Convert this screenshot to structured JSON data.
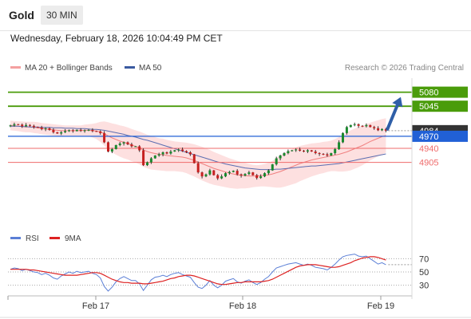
{
  "header": {
    "symbol": "Gold",
    "interval": "30 MIN",
    "datetime": "Wednesday, February 18, 2026 10:04:49 PM CET"
  },
  "legend": {
    "ma20_label": "MA 20 + Bollinger Bands",
    "ma50_label": "MA 50",
    "credit": "Research © 2026 Trading Central"
  },
  "colors": {
    "resistance": "#4a9c0a",
    "support": "#ef6b6b",
    "pivot": "#2160d6",
    "last": "#333333",
    "up_candle": "#1a8a2e",
    "down_candle": "#c62020",
    "bollinger_fill": "#fde0e0",
    "ma20": "#f08080",
    "ma50": "#5b6db0",
    "arrow": "#2f5fa8",
    "rsi": "#5b7fd6",
    "rsi_ma": "#dd2222"
  },
  "chart_data": [
    {
      "type": "candlestick",
      "x_ticks": [
        "Feb 17",
        "Feb 18",
        "Feb 19"
      ],
      "ylim": [
        4745,
        5115
      ],
      "levels": [
        {
          "value": 5080,
          "label": "5080",
          "kind": "resistance"
        },
        {
          "value": 5045,
          "label": "5045",
          "kind": "resistance"
        },
        {
          "value": 4984,
          "label": "4984",
          "kind": "last"
        },
        {
          "value": 4970,
          "label": "4970",
          "kind": "pivot"
        },
        {
          "value": 4940,
          "label": "4940",
          "kind": "support"
        },
        {
          "value": 4905,
          "label": "4905",
          "kind": "support"
        }
      ],
      "close": [
        4997,
        5000,
        4999,
        4995,
        4998,
        4996,
        4993,
        4992,
        4988,
        4990,
        4986,
        4980,
        4977,
        4980,
        4983,
        4985,
        4983,
        4986,
        4984,
        4985,
        4986,
        4983,
        4982,
        4978,
        4955,
        4932,
        4938,
        4948,
        4952,
        4955,
        4950,
        4945,
        4945,
        4935,
        4898,
        4905,
        4915,
        4922,
        4925,
        4930,
        4927,
        4932,
        4935,
        4937,
        4933,
        4930,
        4925,
        4903,
        4880,
        4870,
        4875,
        4885,
        4873,
        4865,
        4870,
        4878,
        4881,
        4884,
        4875,
        4872,
        4876,
        4880,
        4873,
        4866,
        4870,
        4878,
        4885,
        4900,
        4915,
        4922,
        4928,
        4933,
        4935,
        4937,
        4934,
        4932,
        4935,
        4932,
        4928,
        4926,
        4925,
        4922,
        4928,
        4938,
        4955,
        4978,
        4993,
        4998,
        5000,
        4996,
        4995,
        4998,
        4993,
        4990,
        4985,
        4988,
        4984
      ],
      "ma20": [
        4997,
        4996,
        4995,
        4994,
        4993,
        4993,
        4992,
        4991,
        4989,
        4988,
        4987,
        4986,
        4985,
        4984,
        4984,
        4984,
        4984,
        4984,
        4984,
        4985,
        4985,
        4984,
        4983,
        4981,
        4977,
        4971,
        4966,
        4962,
        4958,
        4955,
        4952,
        4948,
        4945,
        4941,
        4936,
        4932,
        4929,
        4927,
        4925,
        4924,
        4922,
        4921,
        4920,
        4919,
        4918,
        4916,
        4913,
        4910,
        4906,
        4902,
        4898,
        4894,
        4890,
        4887,
        4884,
        4881,
        4878,
        4876,
        4874,
        4873,
        4872,
        4871,
        4871,
        4871,
        4872,
        4873,
        4874,
        4876,
        4879,
        4882,
        4886,
        4890,
        4894,
        4898,
        4902,
        4905,
        4908,
        4911,
        4913,
        4915,
        4917,
        4919,
        4921,
        4923,
        4925,
        4928,
        4931,
        4935,
        4939,
        4943,
        4947,
        4952,
        4957,
        4961,
        4965,
        4969,
        4972
      ],
      "ma50": [
        4995,
        4995,
        4995,
        4994,
        4994,
        4993,
        4993,
        4993,
        4992,
        4992,
        4992,
        4991,
        4991,
        4991,
        4990,
        4990,
        4990,
        4989,
        4989,
        4989,
        4988,
        4987,
        4987,
        4986,
        4985,
        4983,
        4981,
        4979,
        4977,
        4975,
        4972,
        4970,
        4968,
        4965,
        4962,
        4960,
        4957,
        4954,
        4951,
        4948,
        4945,
        4942,
        4939,
        4936,
        4933,
        4930,
        4927,
        4924,
        4921,
        4918,
        4915,
        4912,
        4909,
        4906,
        4904,
        4901,
        4899,
        4897,
        4895,
        4893,
        4891,
        4890,
        4889,
        4888,
        4887,
        4887,
        4887,
        4887,
        4888,
        4888,
        4889,
        4890,
        4891,
        4892,
        4893,
        4894,
        4895,
        4896,
        4896,
        4897,
        4898,
        4899,
        4900,
        4901,
        4902,
        4904,
        4906,
        4908,
        4910,
        4912,
        4914,
        4916,
        4918,
        4920,
        4922,
        4924,
        4926
      ],
      "bb_width": [
        12,
        12,
        12,
        13,
        13,
        13,
        14,
        14,
        14,
        14,
        14,
        14,
        14,
        14,
        13,
        13,
        13,
        13,
        13,
        14,
        15,
        17,
        20,
        25,
        30,
        34,
        36,
        38,
        39,
        40,
        40,
        40,
        40,
        41,
        42,
        42,
        42,
        41,
        40,
        40,
        39,
        38,
        37,
        37,
        37,
        38,
        39,
        40,
        41,
        42,
        42,
        42,
        41,
        40,
        39,
        38,
        37,
        36,
        35,
        33,
        32,
        30,
        28,
        27,
        27,
        28,
        30,
        33,
        37,
        40,
        42,
        43,
        44,
        45,
        44,
        43,
        42,
        41,
        40,
        39,
        39,
        38,
        38,
        40,
        43,
        46,
        48,
        50,
        50,
        50,
        49,
        48,
        47,
        46,
        45,
        44,
        43
      ],
      "projection": {
        "from": 4984,
        "to": 5080
      },
      "annotation": "TC-logo watermark near last candle"
    },
    {
      "type": "line",
      "ylim": [
        15,
        85
      ],
      "y_ticks": [
        70,
        50,
        30
      ],
      "series": [
        {
          "name": "RSI",
          "values": [
            54,
            56,
            55,
            52,
            54,
            52,
            50,
            49,
            46,
            48,
            45,
            41,
            39,
            44,
            47,
            50,
            48,
            51,
            49,
            50,
            51,
            48,
            46,
            41,
            28,
            21,
            27,
            35,
            40,
            43,
            40,
            37,
            37,
            32,
            22,
            30,
            38,
            42,
            43,
            45,
            43,
            46,
            48,
            49,
            46,
            44,
            42,
            34,
            27,
            25,
            30,
            37,
            30,
            26,
            30,
            36,
            38,
            40,
            35,
            33,
            36,
            38,
            34,
            31,
            34,
            39,
            43,
            50,
            56,
            58,
            60,
            62,
            63,
            64,
            62,
            60,
            62,
            60,
            57,
            56,
            55,
            53,
            57,
            62,
            68,
            73,
            75,
            76,
            77,
            74,
            73,
            74,
            70,
            66,
            62,
            64,
            61
          ]
        },
        {
          "name": "9MA",
          "values": [
            54,
            54,
            54,
            54,
            54,
            53,
            53,
            52,
            51,
            50,
            49,
            48,
            47,
            46,
            45,
            45,
            45,
            45,
            46,
            47,
            48,
            49,
            49,
            48,
            45,
            42,
            39,
            37,
            35,
            34,
            34,
            33,
            33,
            33,
            32,
            32,
            33,
            34,
            35,
            36,
            38,
            40,
            41,
            43,
            44,
            45,
            45,
            44,
            42,
            40,
            38,
            36,
            34,
            32,
            31,
            31,
            32,
            33,
            34,
            34,
            35,
            35,
            35,
            35,
            35,
            36,
            37,
            39,
            42,
            45,
            48,
            51,
            54,
            57,
            59,
            60,
            61,
            61,
            61,
            60,
            59,
            58,
            57,
            57,
            58,
            60,
            62,
            64,
            67,
            69,
            71,
            72,
            73,
            73,
            72,
            70,
            68
          ]
        }
      ]
    }
  ]
}
